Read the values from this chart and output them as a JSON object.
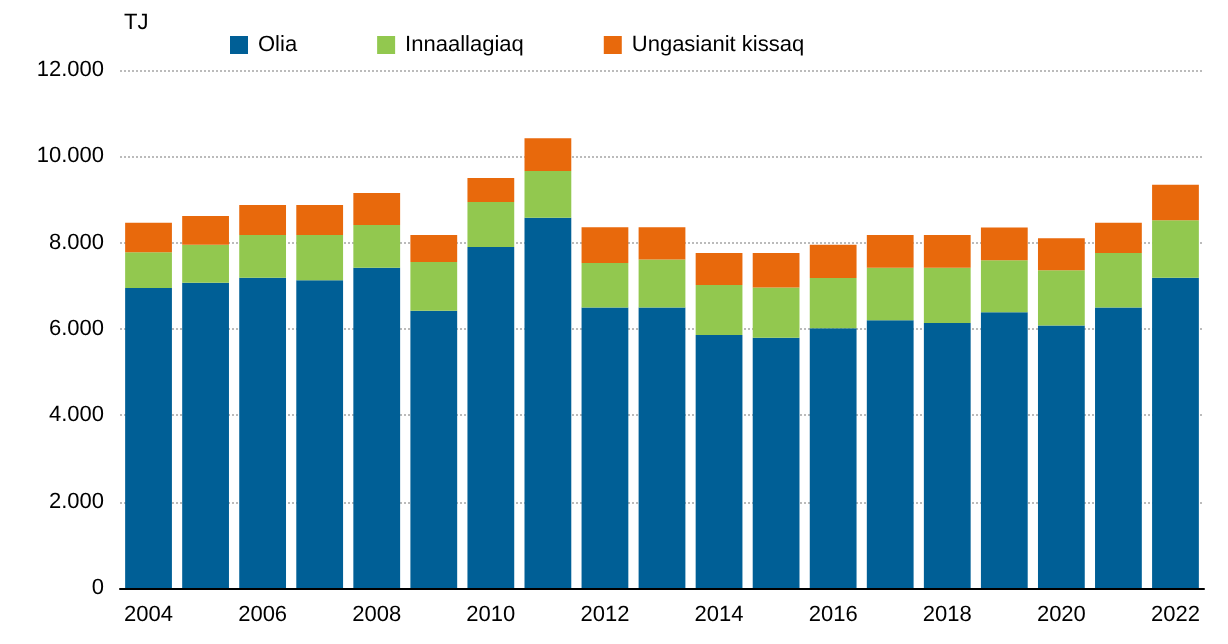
{
  "chart_data": {
    "type": "bar",
    "stacked": true,
    "ylabel": "TJ",
    "categories": [
      "2004",
      null,
      "2006",
      null,
      "2008",
      null,
      "2010",
      null,
      "2012",
      null,
      "2014",
      null,
      "2016",
      null,
      "2018",
      null,
      "2020",
      null,
      "2022"
    ],
    "series": [
      {
        "name": "Olia",
        "color": "#005f96",
        "values": [
          6950,
          7070,
          7190,
          7130,
          7420,
          6420,
          7900,
          8580,
          6500,
          6500,
          5860,
          5800,
          6020,
          6200,
          6140,
          6390,
          6080,
          6500,
          7190
        ]
      },
      {
        "name": "Innaallagiaq",
        "color": "#92c84f",
        "values": [
          830,
          880,
          990,
          1050,
          990,
          1130,
          1040,
          1080,
          1030,
          1110,
          1160,
          1160,
          1160,
          1220,
          1280,
          1200,
          1280,
          1260,
          1330
        ]
      },
      {
        "name": "Ungasianit kissaq",
        "color": "#e8690c",
        "values": [
          680,
          670,
          690,
          690,
          740,
          630,
          560,
          760,
          830,
          750,
          740,
          800,
          770,
          760,
          760,
          760,
          740,
          700,
          820
        ]
      }
    ],
    "ylim": [
      0,
      12000
    ],
    "yticks": [
      0,
      {
        "value": 2000,
        "label": "2.000"
      },
      {
        "value": 4000,
        "label": "4.000"
      },
      {
        "value": 6000,
        "label": "6.000"
      },
      {
        "value": 8000,
        "label": "8.000"
      },
      {
        "value": 10000,
        "label": "10.000"
      },
      {
        "value": 12000,
        "label": "12.000"
      }
    ],
    "grid": "y",
    "legend": "top left"
  }
}
